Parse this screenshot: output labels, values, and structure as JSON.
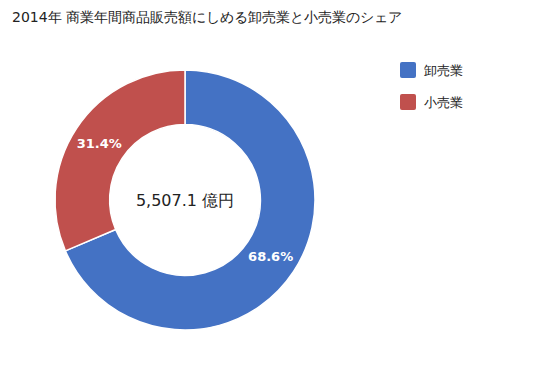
{
  "chart_data": {
    "type": "donut",
    "title": "2014年 商業年間商品販売額にしめる卸売業と小売業のシェア",
    "categories": [
      "卸売業",
      "小売業"
    ],
    "values": [
      68.6,
      31.4
    ],
    "value_labels": [
      "68.6%",
      "31.4%"
    ],
    "colors": [
      "#4472C4",
      "#C0504D"
    ],
    "annotations": [
      "5,507.1 億円"
    ],
    "data_labels": true,
    "legend": "right"
  }
}
